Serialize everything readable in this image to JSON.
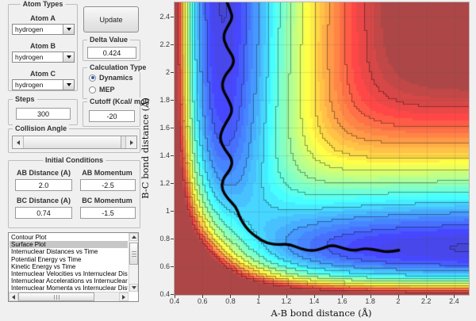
{
  "app": {
    "background": "#f0f0f0",
    "selection_color": "#c6c6c6",
    "radio_accent": "#2c5fb3"
  },
  "panels": {
    "atom_types": {
      "title": "Atom Types",
      "fields": [
        {
          "label": "Atom A",
          "value": "hydrogen"
        },
        {
          "label": "Atom B",
          "value": "hydrogen"
        },
        {
          "label": "Atom C",
          "value": "hydrogen"
        }
      ]
    },
    "update_button": {
      "label": "Update"
    },
    "delta": {
      "title": "Delta Value",
      "value": "0.424"
    },
    "calculation_type": {
      "title": "Calculation Type",
      "options": [
        {
          "label": "Dynamics",
          "selected": true
        },
        {
          "label": "MEP",
          "selected": false
        }
      ]
    },
    "steps": {
      "title": "Steps",
      "value": "300"
    },
    "cutoff": {
      "title": "Cutoff (Kcal/ mol)",
      "value": "-20"
    },
    "collision_angle": {
      "title": "Collision Angle"
    },
    "initial_conditions": {
      "title": "Initial Conditions",
      "fields": [
        {
          "label": "AB Distance (A)",
          "value": "2.0"
        },
        {
          "label": "AB Momentum",
          "value": "-2.5"
        },
        {
          "label": "BC Distance (A)",
          "value": "0.74"
        },
        {
          "label": "BC Momentum",
          "value": "-1.5"
        }
      ]
    },
    "plot_list": {
      "items": [
        "Contour Plot",
        "Surface Plot",
        "Internuclear Distances vs Time",
        "Potential Energy vs Time",
        "Kinetic Energy vs Time",
        "Internuclear Velocities vs Internuclear Distance",
        "Internuclear Accelerations vs Internuclear Distance",
        "Internuclear Momenta vs Internuclear Distance"
      ],
      "selected_index": 1
    }
  },
  "chart_data": {
    "type": "heatmap",
    "subtype": "filled-contour potential energy surface with trajectory overlay",
    "xlabel": "A-B bond distance (Å)",
    "ylabel": "B-C bond distance (Å)",
    "xlim": [
      0.4,
      2.5
    ],
    "ylim": [
      0.4,
      2.5
    ],
    "xticks": [
      0.4,
      0.6,
      0.8,
      1.0,
      1.2,
      1.4,
      1.6,
      1.8,
      2.0,
      2.2,
      2.4
    ],
    "xtick_labels": [
      "0.4",
      "0.6",
      "0.8",
      "1",
      "1.2",
      "1.4",
      "1.6",
      "1.8",
      "2",
      "2.2",
      "2.4"
    ],
    "yticks": [
      0.4,
      0.6,
      0.8,
      1.0,
      1.2,
      1.4,
      1.6,
      1.8,
      2.0,
      2.2,
      2.4
    ],
    "ytick_labels": [
      "0.4",
      "0.6",
      "0.8",
      "1",
      "1.2",
      "1.4",
      "1.6",
      "1.8",
      "2",
      "2.2",
      "2.4"
    ],
    "colormap": "jet",
    "grid": true,
    "surface": {
      "model": "collinear H+H2 LEPS potential (Morse/anti-Morse)",
      "D_kcal": 109.5,
      "alpha_inv_A": 1.9426,
      "r0_A": 0.7414,
      "cutoff_kcal": -20,
      "vmin_kcal": -116,
      "equilibrium_bond_A": 0.74
    },
    "levels": {
      "bands": 36,
      "line_every": 3
    },
    "trajectory": {
      "color": "#000000",
      "start": [
        2.0,
        0.74
      ],
      "points": [
        [
          2.0,
          0.72
        ],
        [
          1.93,
          0.705
        ],
        [
          1.85,
          0.72
        ],
        [
          1.76,
          0.735
        ],
        [
          1.68,
          0.715
        ],
        [
          1.6,
          0.735
        ],
        [
          1.52,
          0.76
        ],
        [
          1.45,
          0.73
        ],
        [
          1.38,
          0.715
        ],
        [
          1.3,
          0.73
        ],
        [
          1.22,
          0.765
        ],
        [
          1.14,
          0.76
        ],
        [
          1.06,
          0.77
        ],
        [
          0.99,
          0.81
        ],
        [
          0.93,
          0.86
        ],
        [
          0.885,
          0.92
        ],
        [
          0.86,
          0.97
        ],
        [
          0.84,
          1.03
        ],
        [
          0.78,
          1.09
        ],
        [
          0.735,
          1.16
        ],
        [
          0.745,
          1.235
        ],
        [
          0.8,
          1.3
        ],
        [
          0.815,
          1.37
        ],
        [
          0.76,
          1.44
        ],
        [
          0.72,
          1.52
        ],
        [
          0.745,
          1.6
        ],
        [
          0.79,
          1.67
        ],
        [
          0.815,
          1.73
        ],
        [
          0.78,
          1.81
        ],
        [
          0.735,
          1.89
        ],
        [
          0.755,
          1.97
        ],
        [
          0.815,
          2.04
        ],
        [
          0.825,
          2.1
        ],
        [
          0.77,
          2.18
        ],
        [
          0.745,
          2.26
        ],
        [
          0.78,
          2.33
        ],
        [
          0.815,
          2.39
        ],
        [
          0.795,
          2.45
        ],
        [
          0.775,
          2.5
        ]
      ]
    }
  }
}
